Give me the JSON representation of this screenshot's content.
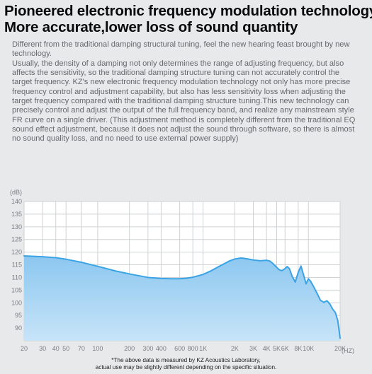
{
  "headline": {
    "line1": "Pioneered electronic frequency modulation technology",
    "line2": "More accurate,lower loss of sound quantity"
  },
  "body": {
    "p1": "Different from the traditional damping structural tuning, feel the new hearing feast brought by new technology.",
    "p2": "Usually, the density of a damping not only determines the range of adjusting frequency, but also affects the sensitivity, so the traditional damping structure tuning can not accurately control the target frequency. KZ's new electronic frequency modulation technology not only has more precise frequency control and adjustment capability, but also has less sensitivity loss when adjusting the target frequency compared with the traditional damping structure tuning.This new technology can precisely control and adjust the output of the full frequency band, and realize any mainstream style FR curve on a single driver. (This adjustment method is completely different from the traditional EQ sound effect adjustment, because it does not adjust the sound through software, so there is almost no sound quality loss, and no need to use external power supply)"
  },
  "chart_data": {
    "type": "area",
    "ylabel": "(dB)",
    "xlabel": "(HZ)",
    "x_scale": "log",
    "grid": true,
    "ylim": [
      85,
      140
    ],
    "xlim": [
      20,
      20000
    ],
    "yticks": [
      90,
      95,
      100,
      105,
      110,
      115,
      120,
      125,
      130,
      135,
      140
    ],
    "xticks": [
      {
        "value": 20,
        "label": "20"
      },
      {
        "value": 30,
        "label": "30"
      },
      {
        "value": 40,
        "label": "40"
      },
      {
        "value": 50,
        "label": "50"
      },
      {
        "value": 70,
        "label": "70"
      },
      {
        "value": 100,
        "label": "100"
      },
      {
        "value": 200,
        "label": "200"
      },
      {
        "value": 300,
        "label": "300"
      },
      {
        "value": 400,
        "label": "400"
      },
      {
        "value": 600,
        "label": "600"
      },
      {
        "value": 800,
        "label": "800"
      },
      {
        "value": 1000,
        "label": "1K"
      },
      {
        "value": 2000,
        "label": "2K"
      },
      {
        "value": 3000,
        "label": "3K"
      },
      {
        "value": 4000,
        "label": "4K"
      },
      {
        "value": 5000,
        "label": "5K"
      },
      {
        "value": 6000,
        "label": "6K"
      },
      {
        "value": 8000,
        "label": "8K"
      },
      {
        "value": 10000,
        "label": "10K"
      },
      {
        "value": 20000,
        "label": "20K"
      }
    ],
    "series": [
      {
        "color": "#3aa3e6",
        "fill": "#a7d3f3",
        "x": [
          20,
          30,
          40,
          50,
          70,
          100,
          150,
          200,
          300,
          400,
          500,
          600,
          700,
          800,
          1000,
          1200,
          1500,
          1800,
          2000,
          2300,
          2600,
          3000,
          3500,
          4000,
          4300,
          4600,
          5000,
          5300,
          5600,
          6000,
          6300,
          6600,
          7000,
          7500,
          8000,
          8500,
          9000,
          9500,
          10000,
          10500,
          11000,
          12000,
          13000,
          14000,
          15000,
          16000,
          17000,
          18000,
          19000,
          20000
        ],
        "y": [
          118.5,
          118.2,
          117.8,
          117.2,
          116.0,
          114.4,
          112.5,
          111.4,
          110.0,
          109.6,
          109.5,
          109.5,
          109.7,
          110.1,
          111.2,
          112.7,
          114.9,
          116.6,
          117.3,
          117.7,
          117.4,
          116.9,
          116.6,
          116.8,
          116.5,
          115.5,
          114.0,
          113.0,
          112.7,
          113.5,
          114.3,
          113.5,
          110.5,
          108.2,
          112.0,
          114.5,
          111.0,
          107.5,
          109.5,
          108.5,
          107.0,
          104.0,
          101.0,
          100.2,
          100.8,
          99.5,
          97.5,
          96.2,
          93.0,
          86.0
        ]
      }
    ]
  },
  "footnote": {
    "line1": "*The above data is measured by KZ Acoustics Laboratory,",
    "line2": "actual use may be slightly different depending on the specific situation."
  }
}
